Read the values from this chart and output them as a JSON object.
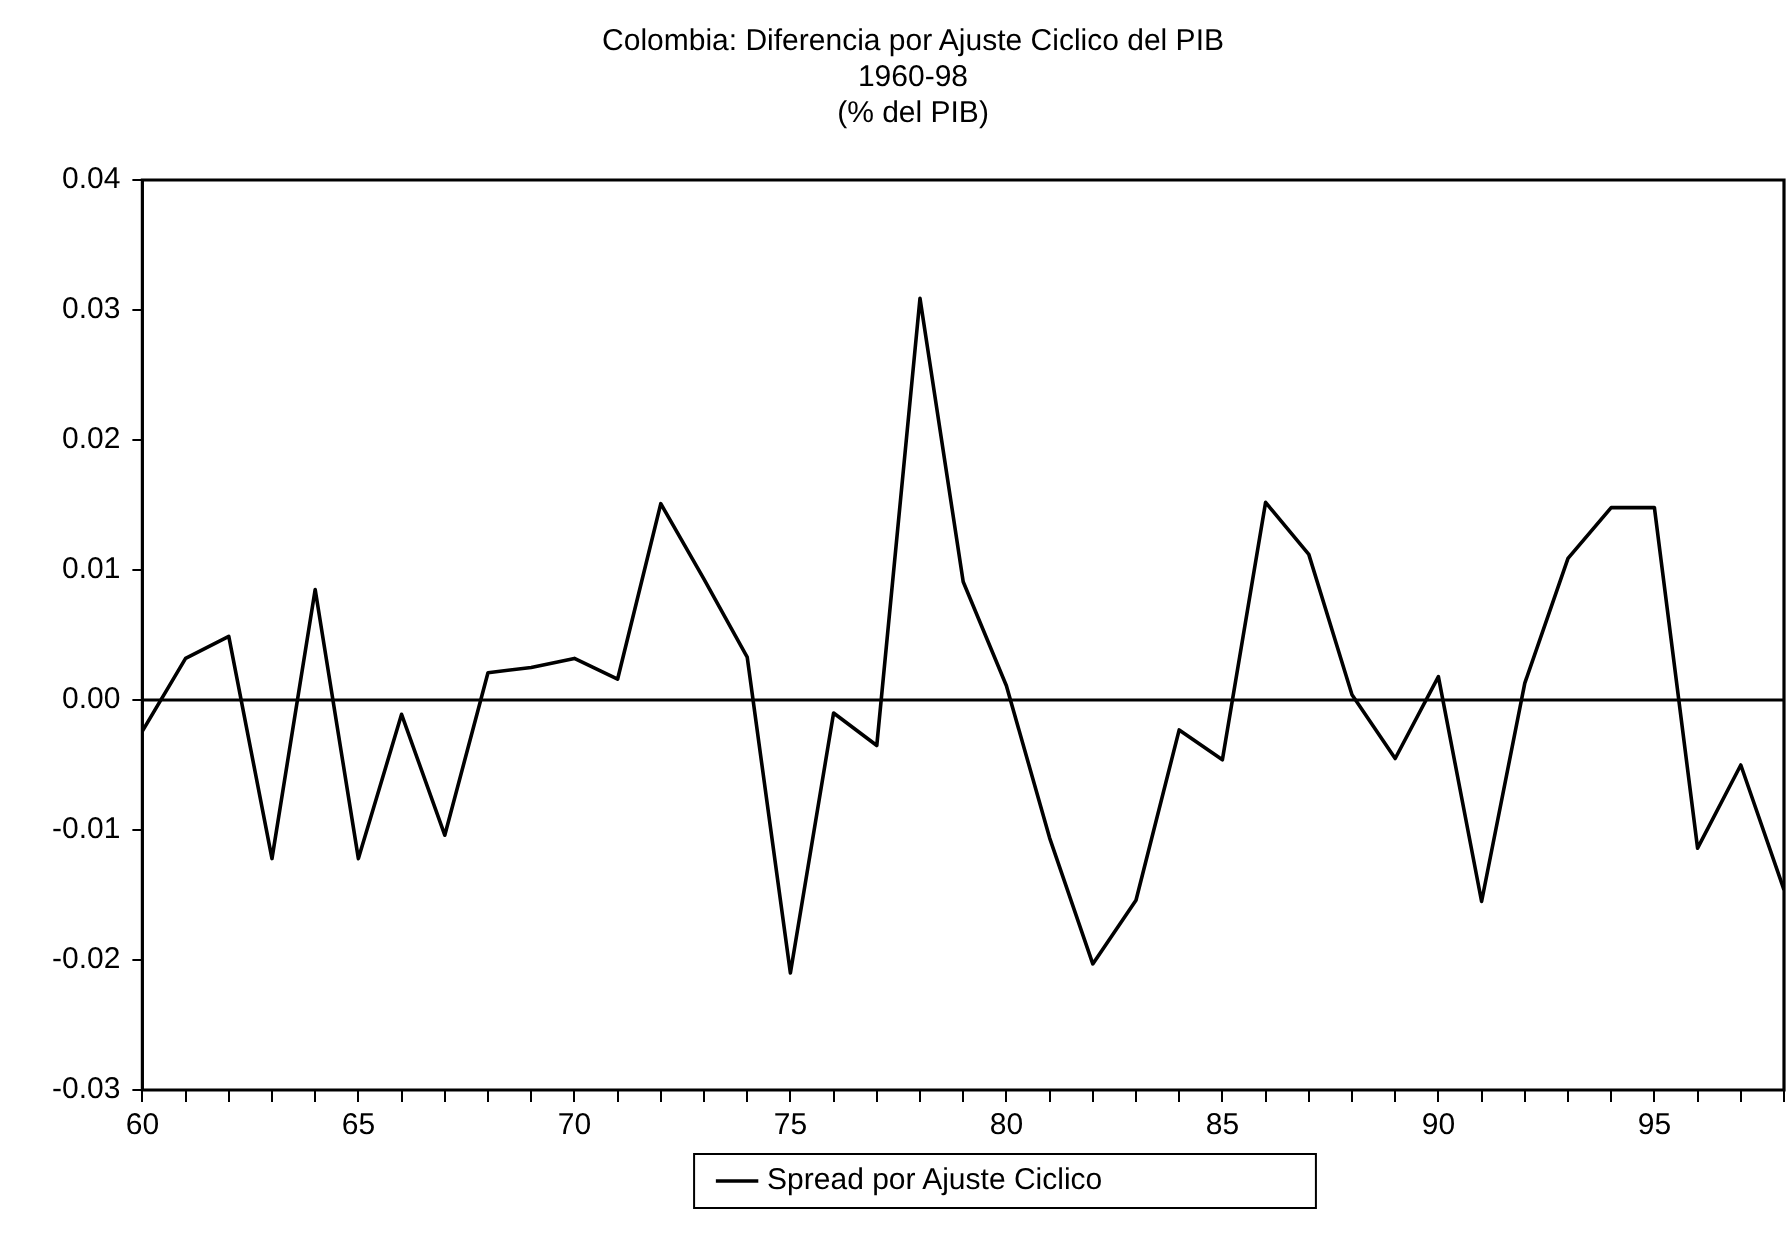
{
  "chart_data": {
    "type": "line",
    "title": "Colombia: Diferencia por Ajuste Ciclico del PIB",
    "subtitle": "1960-98\n(% del PIB)",
    "x": [
      60,
      61,
      62,
      63,
      64,
      65,
      66,
      67,
      68,
      69,
      70,
      71,
      72,
      73,
      74,
      75,
      76,
      77,
      78,
      79,
      80,
      81,
      82,
      83,
      84,
      85,
      86,
      87,
      88,
      89,
      90,
      91,
      92,
      93,
      94,
      95,
      96,
      97,
      98
    ],
    "series": [
      {
        "name": "Spread por Ajuste Ciclico",
        "color": "#000000",
        "values": [
          -0.0024,
          0.0032,
          0.0049,
          -0.0122,
          0.0085,
          -0.0122,
          -0.0011,
          -0.0104,
          0.0021,
          0.0025,
          0.0032,
          0.0016,
          0.0151,
          0.0093,
          0.0033,
          -0.021,
          -0.001,
          -0.0035,
          0.0309,
          0.0091,
          0.0011,
          -0.0106,
          -0.0203,
          -0.0154,
          -0.0023,
          -0.0046,
          0.0152,
          0.0112,
          0.0004,
          -0.0045,
          0.0018,
          -0.0155,
          0.0013,
          0.0109,
          0.0148,
          0.0148,
          -0.0114,
          -0.005,
          -0.0146
        ]
      }
    ],
    "xlim": [
      60,
      98
    ],
    "xticks": [
      60,
      {
        "value": 61,
        "label": null
      },
      {
        "value": 62,
        "label": null
      },
      {
        "value": 63,
        "label": null
      },
      {
        "value": 64,
        "label": null
      },
      65,
      {
        "value": 66,
        "label": null
      },
      {
        "value": 67,
        "label": null
      },
      {
        "value": 68,
        "label": null
      },
      {
        "value": 69,
        "label": null
      },
      70,
      {
        "value": 71,
        "label": null
      },
      {
        "value": 72,
        "label": null
      },
      {
        "value": 73,
        "label": null
      },
      {
        "value": 74,
        "label": null
      },
      75,
      {
        "value": 76,
        "label": null
      },
      {
        "value": 77,
        "label": null
      },
      {
        "value": 78,
        "label": null
      },
      {
        "value": 79,
        "label": null
      },
      80,
      {
        "value": 81,
        "label": null
      },
      {
        "value": 82,
        "label": null
      },
      {
        "value": 83,
        "label": null
      },
      {
        "value": 84,
        "label": null
      },
      85,
      {
        "value": 86,
        "label": null
      },
      {
        "value": 87,
        "label": null
      },
      {
        "value": 88,
        "label": null
      },
      {
        "value": 89,
        "label": null
      },
      90,
      {
        "value": 91,
        "label": null
      },
      {
        "value": 92,
        "label": null
      },
      {
        "value": 93,
        "label": null
      },
      {
        "value": 94,
        "label": null
      },
      95,
      {
        "value": 96,
        "label": null
      },
      {
        "value": 97,
        "label": null
      },
      {
        "value": 98,
        "label": null
      }
    ],
    "ylim": [
      -0.03,
      0.04
    ],
    "yticks": [
      {
        "value": -0.03,
        "label": "-0.03"
      },
      {
        "value": -0.02,
        "label": "-0.02"
      },
      {
        "value": -0.01,
        "label": "-0.01"
      },
      {
        "value": 0,
        "label": "0.00"
      },
      {
        "value": 0.01,
        "label": "0.01"
      },
      {
        "value": 0.02,
        "label": "0.02"
      },
      {
        "value": 0.03,
        "label": "0.03"
      },
      {
        "value": 0.04,
        "label": "0.04"
      }
    ],
    "ref_lines": [
      {
        "axis": "y",
        "value": 0,
        "color": "#000000"
      }
    ],
    "grid": false,
    "legend": "bottom",
    "marker": "none",
    "line_style": "solid"
  }
}
